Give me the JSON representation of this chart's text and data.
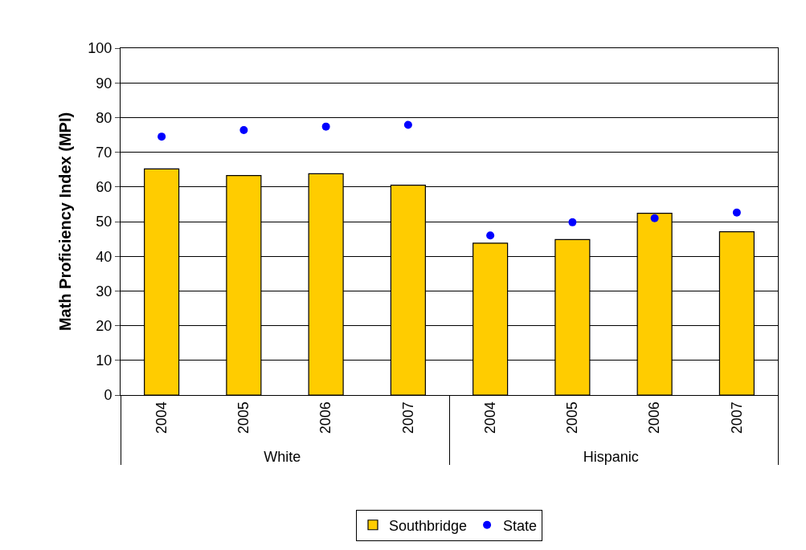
{
  "chart_data": {
    "type": "bar",
    "ylabel": "Math Proficiency Index (MPI)",
    "categories": [
      "2004",
      "2005",
      "2006",
      "2007",
      "2004",
      "2005",
      "2006",
      "2007"
    ],
    "annotations": [
      "White",
      "Hispanic"
    ],
    "series": [
      {
        "name": "Southbridge",
        "color": "#ffcc00",
        "values": [
          65.2,
          63.3,
          63.8,
          60.5,
          43.8,
          44.8,
          52.4,
          47.1
        ]
      },
      {
        "name": "State",
        "type": "scatter",
        "color": "#0000ff",
        "marker": "circle",
        "values": [
          74.5,
          76.4,
          77.4,
          77.9,
          46.0,
          49.8,
          51.0,
          52.6
        ]
      }
    ],
    "ylim": [
      0,
      100
    ],
    "yticks": [
      0,
      10,
      20,
      30,
      40,
      50,
      60,
      70,
      80,
      90,
      100
    ],
    "grid": "y",
    "legend": "bottom"
  }
}
